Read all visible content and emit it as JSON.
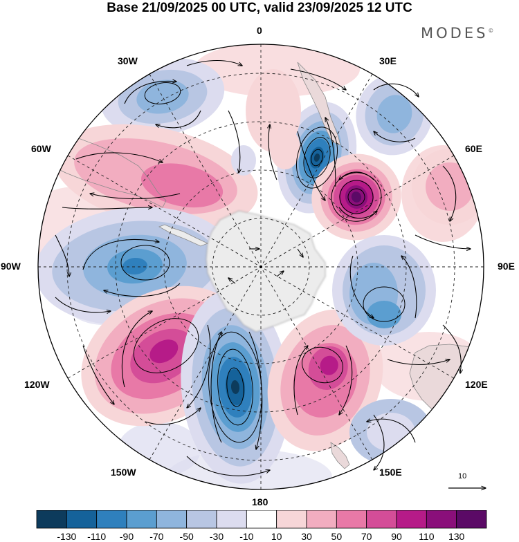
{
  "title": "Base 21/09/2025 00 UTC, valid 23/09/2025 12 UTC",
  "brand": {
    "name": "MODES",
    "mark": "©"
  },
  "longitudes": {
    "top": "0",
    "bottom": "180",
    "left": "90W",
    "right": "90E",
    "nw30": "30W",
    "ne30": "30E",
    "nw60": "60W",
    "ne60": "60E",
    "sw120": "120W",
    "se120": "120E",
    "sw150": "150W",
    "se150": "150E"
  },
  "reference_vector": {
    "label": "10"
  },
  "colorbar": {
    "ticks": [
      "-130",
      "-110",
      "-90",
      "-70",
      "-50",
      "-30",
      "-10",
      "10",
      "30",
      "50",
      "70",
      "90",
      "110",
      "130"
    ],
    "colors": [
      "#0d3b5c",
      "#15629a",
      "#2f80bd",
      "#5b9ed0",
      "#8fb5dd",
      "#b8c6e3",
      "#dcdcef",
      "#ffffff",
      "#f7d6d8",
      "#f2adc0",
      "#e879a7",
      "#d44d98",
      "#b61b88",
      "#8a0f7a",
      "#5b0a66"
    ]
  },
  "anomaly_centers": [
    {
      "name": "low-30W",
      "value": -50
    },
    {
      "name": "high-60W",
      "value": 60
    },
    {
      "name": "low-90W",
      "value": -90
    },
    {
      "name": "high-120W",
      "value": 100
    },
    {
      "name": "low-180",
      "value": -130
    },
    {
      "name": "high-150E",
      "value": 100
    },
    {
      "name": "low-15E",
      "value": -120
    },
    {
      "name": "high-45E",
      "value": 130
    },
    {
      "name": "low-100E",
      "value": -70
    },
    {
      "name": "low-30E",
      "value": -50
    },
    {
      "name": "high-75E",
      "value": 30
    },
    {
      "name": "low-140E",
      "value": -40
    },
    {
      "name": "high-0",
      "value": 20
    }
  ]
}
